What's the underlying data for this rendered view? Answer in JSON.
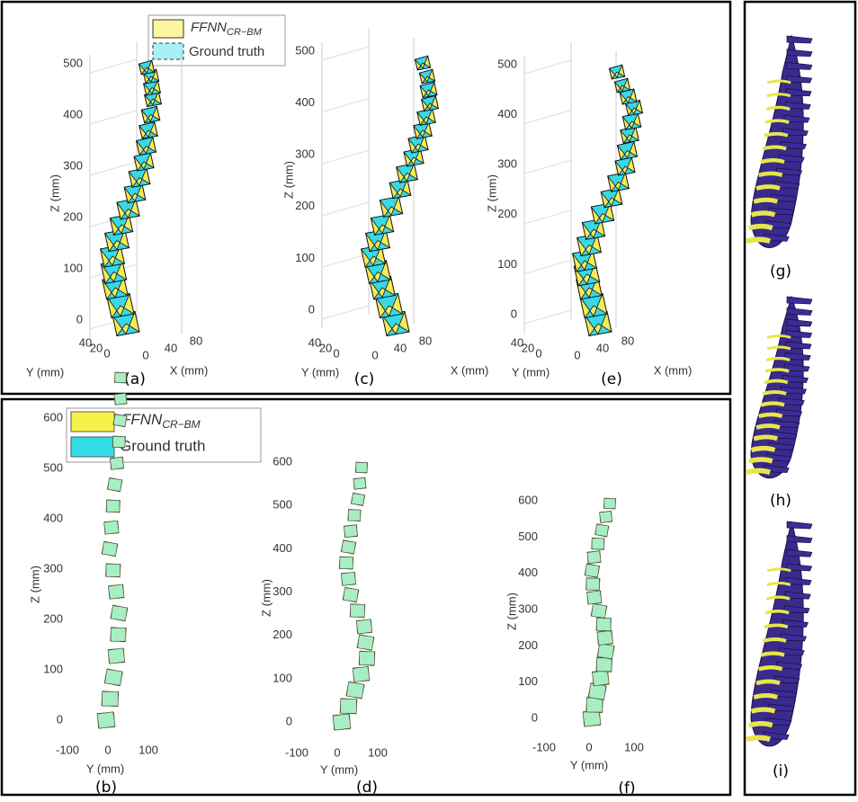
{
  "legend_top": {
    "method": "FFNN",
    "method_subscript": "CR−BM",
    "ground_truth": "Ground truth"
  },
  "legend_bottom": {
    "method": "FFNN",
    "method_subscript": "CR−BM",
    "ground_truth": "Ground truth"
  },
  "panels_3d": [
    {
      "label": "(a)",
      "z_label": "Z (mm)",
      "y_label": "Y (mm)",
      "x_label": "X (mm)",
      "z_ticks": [
        0,
        100,
        200,
        300,
        400,
        500
      ],
      "y_ticks": [
        40,
        20,
        0
      ],
      "x_ticks": [
        0,
        40,
        80
      ]
    },
    {
      "label": "(c)",
      "z_label": "Z (mm)",
      "y_label": "Y (mm)",
      "x_label": "X (mm)",
      "z_ticks": [
        0,
        100,
        200,
        300,
        400,
        500
      ],
      "y_ticks": [
        40,
        20,
        0
      ],
      "x_ticks": [
        0,
        40,
        80
      ]
    },
    {
      "label": "(e)",
      "z_label": "Z (mm)",
      "y_label": "Y (mm)",
      "x_label": "X (mm)",
      "z_ticks": [
        0,
        100,
        200,
        300,
        400,
        500
      ],
      "y_ticks": [
        40,
        20,
        0
      ],
      "x_ticks": [
        0,
        40,
        80
      ]
    }
  ],
  "panels_2d": [
    {
      "label": "(b)",
      "z_label": "Z (mm)",
      "y_label": "Y (mm)",
      "z_ticks": [
        0,
        100,
        200,
        300,
        400,
        500,
        600
      ],
      "y_ticks": [
        -100,
        0,
        100
      ]
    },
    {
      "label": "(d)",
      "z_label": "Z (mm)",
      "y_label": "Y (mm)",
      "z_ticks": [
        0,
        100,
        200,
        300,
        400,
        500,
        600
      ],
      "y_ticks": [
        -100,
        0,
        100
      ]
    },
    {
      "label": "(f)",
      "z_label": "Z (mm)",
      "y_label": "Y (mm)",
      "z_ticks": [
        0,
        100,
        200,
        300,
        400,
        500,
        600
      ],
      "y_ticks": [
        -100,
        0,
        100
      ]
    }
  ],
  "renders": [
    {
      "label": "(g)"
    },
    {
      "label": "(h)"
    },
    {
      "label": "(i)"
    }
  ]
}
